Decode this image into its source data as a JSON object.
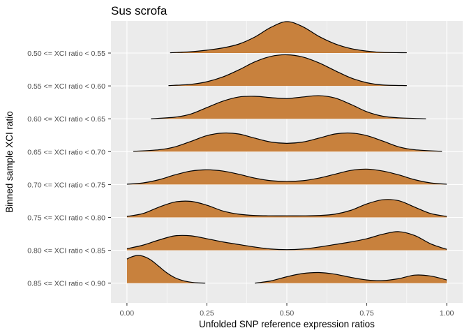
{
  "chart_data": {
    "type": "ridgeline-density",
    "title": "Sus scrofa",
    "xlabel": "Unfolded SNP reference expression ratios",
    "ylabel": "Binned sample XCI ratio",
    "xlim": [
      -0.05,
      1.05
    ],
    "x_ticks": [
      0.0,
      0.25,
      0.5,
      0.75,
      1.0
    ],
    "x_tick_labels": [
      "0.00",
      "0.25",
      "0.50",
      "0.75",
      "1.00"
    ],
    "fill_color": "#C8813D",
    "outline_color": "#000000",
    "panel_background": "#EBEBEB",
    "grid_color": "#FFFFFF",
    "categories": [
      "0.50 <= XCI ratio < 0.55",
      "0.55 <= XCI ratio < 0.60",
      "0.60 <= XCI ratio < 0.65",
      "0.65 <= XCI ratio < 0.70",
      "0.70 <= XCI ratio < 0.75",
      "0.75 <= XCI ratio < 0.80",
      "0.80 <= XCI ratio < 0.85",
      "0.85 <= XCI ratio < 0.90"
    ],
    "series": [
      {
        "name": "0.50 <= XCI ratio < 0.55",
        "segments": [
          {
            "x": [
              0.135,
              0.2,
              0.25,
              0.3,
              0.35,
              0.4,
              0.45,
              0.5,
              0.55,
              0.6,
              0.65,
              0.7,
              0.75,
              0.8,
              0.875
            ],
            "y": [
              0.01,
              0.04,
              0.09,
              0.16,
              0.28,
              0.5,
              0.8,
              0.98,
              0.82,
              0.52,
              0.29,
              0.14,
              0.06,
              0.02,
              0.01
            ]
          }
        ]
      },
      {
        "name": "0.55 <= XCI ratio < 0.60",
        "segments": [
          {
            "x": [
              0.13,
              0.2,
              0.25,
              0.3,
              0.35,
              0.4,
              0.45,
              0.5,
              0.55,
              0.6,
              0.65,
              0.7,
              0.75,
              0.8,
              0.875
            ],
            "y": [
              0.01,
              0.05,
              0.13,
              0.28,
              0.5,
              0.75,
              0.92,
              0.97,
              0.9,
              0.72,
              0.48,
              0.25,
              0.1,
              0.03,
              0.01
            ]
          }
        ]
      },
      {
        "name": "0.60 <= XCI ratio < 0.65",
        "segments": [
          {
            "x": [
              0.075,
              0.15,
              0.2,
              0.25,
              0.3,
              0.35,
              0.4,
              0.45,
              0.5,
              0.55,
              0.6,
              0.65,
              0.7,
              0.75,
              0.8,
              0.85,
              0.935
            ],
            "y": [
              0.0,
              0.05,
              0.15,
              0.35,
              0.55,
              0.68,
              0.7,
              0.66,
              0.63,
              0.68,
              0.72,
              0.65,
              0.45,
              0.22,
              0.08,
              0.03,
              0.0
            ]
          }
        ]
      },
      {
        "name": "0.65 <= XCI ratio < 0.70",
        "segments": [
          {
            "x": [
              0.02,
              0.1,
              0.15,
              0.2,
              0.25,
              0.3,
              0.35,
              0.4,
              0.45,
              0.5,
              0.55,
              0.6,
              0.65,
              0.7,
              0.75,
              0.8,
              0.85,
              0.9,
              0.985
            ],
            "y": [
              0.01,
              0.06,
              0.15,
              0.32,
              0.5,
              0.58,
              0.55,
              0.42,
              0.3,
              0.26,
              0.3,
              0.42,
              0.55,
              0.58,
              0.5,
              0.33,
              0.15,
              0.06,
              0.01
            ]
          }
        ]
      },
      {
        "name": "0.70 <= XCI ratio < 0.75",
        "segments": [
          {
            "x": [
              0.0,
              0.05,
              0.1,
              0.15,
              0.2,
              0.25,
              0.3,
              0.35,
              0.4,
              0.45,
              0.5,
              0.55,
              0.6,
              0.65,
              0.7,
              0.75,
              0.8,
              0.85,
              0.9,
              0.95,
              1.0
            ],
            "y": [
              0.01,
              0.05,
              0.15,
              0.3,
              0.42,
              0.46,
              0.42,
              0.32,
              0.2,
              0.12,
              0.1,
              0.12,
              0.2,
              0.32,
              0.44,
              0.48,
              0.42,
              0.3,
              0.15,
              0.05,
              0.01
            ]
          }
        ]
      },
      {
        "name": "0.75 <= XCI ratio < 0.80",
        "segments": [
          {
            "x": [
              0.0,
              0.05,
              0.1,
              0.15,
              0.2,
              0.25,
              0.3,
              0.35,
              0.4,
              0.45,
              0.5,
              0.55,
              0.6,
              0.65,
              0.7,
              0.75,
              0.8,
              0.85,
              0.9,
              0.95,
              1.0
            ],
            "y": [
              0.03,
              0.12,
              0.32,
              0.48,
              0.5,
              0.38,
              0.2,
              0.1,
              0.06,
              0.05,
              0.05,
              0.05,
              0.06,
              0.1,
              0.22,
              0.42,
              0.55,
              0.52,
              0.32,
              0.12,
              0.03
            ]
          }
        ]
      },
      {
        "name": "0.80 <= XCI ratio < 0.85",
        "segments": [
          {
            "x": [
              0.0,
              0.05,
              0.1,
              0.15,
              0.2,
              0.25,
              0.3,
              0.35,
              0.4,
              0.45,
              0.5,
              0.55,
              0.6,
              0.65,
              0.7,
              0.75,
              0.8,
              0.85,
              0.9,
              0.95,
              1.0
            ],
            "y": [
              0.05,
              0.16,
              0.32,
              0.45,
              0.45,
              0.36,
              0.26,
              0.18,
              0.1,
              0.04,
              0.02,
              0.04,
              0.1,
              0.18,
              0.26,
              0.36,
              0.5,
              0.58,
              0.46,
              0.2,
              0.03
            ]
          }
        ]
      },
      {
        "name": "0.85 <= XCI ratio < 0.90",
        "segments": [
          {
            "x": [
              0.0,
              0.01,
              0.03,
              0.05,
              0.075,
              0.1,
              0.125,
              0.15,
              0.175,
              0.2,
              0.22,
              0.245
            ],
            "y": [
              0.75,
              0.8,
              0.86,
              0.84,
              0.72,
              0.52,
              0.32,
              0.17,
              0.08,
              0.03,
              0.01,
              0.0
            ]
          },
          {
            "x": [
              0.4,
              0.45,
              0.5,
              0.55,
              0.6,
              0.65,
              0.7,
              0.75,
              0.8,
              0.85,
              0.9,
              0.95,
              1.0
            ],
            "y": [
              0.0,
              0.07,
              0.2,
              0.3,
              0.33,
              0.28,
              0.18,
              0.1,
              0.08,
              0.14,
              0.25,
              0.22,
              0.1
            ]
          }
        ]
      }
    ]
  }
}
